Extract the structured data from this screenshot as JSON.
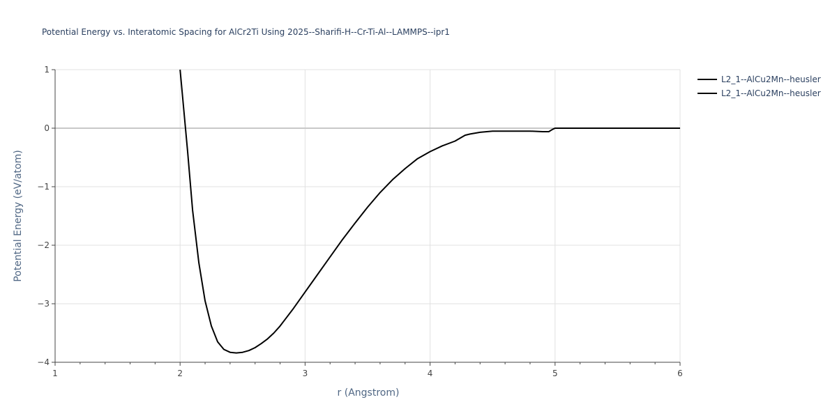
{
  "chart_data": {
    "type": "line",
    "title": "Potential Energy vs. Interatomic Spacing for AlCr2Ti Using 2025--Sharifi-H--Cr-Ti-Al--LAMMPS--ipr1",
    "xlabel": "r (Angstrom)",
    "ylabel": "Potential Energy (eV/atom)",
    "xlim": [
      1,
      6
    ],
    "ylim": [
      -4,
      1
    ],
    "xticks": [
      "1",
      "2",
      "3",
      "4",
      "5",
      "6"
    ],
    "yticks": [
      "1",
      "0",
      "−1",
      "−2",
      "−3",
      "−4"
    ],
    "grid": true,
    "legend_position": "top-right",
    "line_color": "#000000",
    "series": [
      {
        "name": "L2_1--AlCu2Mn--heusler",
        "x": [
          2.0,
          2.03,
          2.06,
          2.1,
          2.15,
          2.2,
          2.25,
          2.3,
          2.35,
          2.4,
          2.45,
          2.5,
          2.55,
          2.6,
          2.65,
          2.7,
          2.75,
          2.8,
          2.85,
          2.9,
          3.0,
          3.1,
          3.2,
          3.3,
          3.4,
          3.5,
          3.6,
          3.7,
          3.8,
          3.9,
          4.0,
          4.1,
          4.2,
          4.28,
          4.32,
          4.4,
          4.5,
          4.6,
          4.7,
          4.8,
          4.9,
          4.95,
          4.98,
          5.0,
          5.1,
          5.5,
          6.0
        ],
        "y": [
          1.0,
          0.3,
          -0.4,
          -1.4,
          -2.3,
          -2.95,
          -3.38,
          -3.65,
          -3.78,
          -3.83,
          -3.84,
          -3.83,
          -3.8,
          -3.75,
          -3.68,
          -3.6,
          -3.5,
          -3.38,
          -3.24,
          -3.1,
          -2.8,
          -2.5,
          -2.2,
          -1.9,
          -1.62,
          -1.35,
          -1.1,
          -0.88,
          -0.69,
          -0.52,
          -0.4,
          -0.3,
          -0.22,
          -0.12,
          -0.1,
          -0.07,
          -0.05,
          -0.05,
          -0.05,
          -0.05,
          -0.06,
          -0.06,
          -0.02,
          0.0,
          0.0,
          0.0,
          0.0
        ]
      },
      {
        "name": "L2_1--AlCu2Mn--heusler",
        "x": [],
        "y": []
      }
    ]
  }
}
